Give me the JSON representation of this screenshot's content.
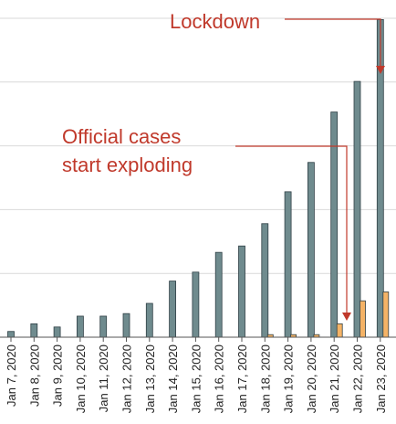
{
  "chart_data": {
    "type": "bar",
    "title": "",
    "xlabel": "",
    "ylabel": "",
    "ylim": [
      0,
      5
    ],
    "grid": true,
    "categories": [
      "Jan 7, 2020",
      "Jan 8, 2020",
      "Jan 9, 2020",
      "Jan 10, 2020",
      "Jan 11, 2020",
      "Jan 12, 2020",
      "Jan 13, 2020",
      "Jan 14, 2020",
      "Jan 15, 2020",
      "Jan 16, 2020",
      "Jan 17, 2020",
      "Jan 18, 2020",
      "Jan 19, 2020",
      "Jan 20, 2020",
      "Jan 21, 2020",
      "Jan 22, 2020",
      "Jan 23, 2020"
    ],
    "series": [
      {
        "color": "#6f8b8e",
        "values": [
          0.09,
          0.21,
          0.16,
          0.33,
          0.33,
          0.37,
          0.53,
          0.88,
          1.02,
          1.33,
          1.43,
          1.78,
          2.28,
          2.74,
          3.53,
          4.01,
          4.98
        ]
      },
      {
        "color": "#f5b366",
        "values": [
          0,
          0,
          0,
          0,
          0,
          0,
          0,
          0,
          0,
          0,
          0,
          0.04,
          0.04,
          0.04,
          0.21,
          0.57,
          0.71
        ]
      }
    ],
    "annotations": [
      {
        "text": "Lockdown",
        "target": "Jan 23, 2020"
      },
      {
        "text": "Official cases",
        "text2": "start exploding",
        "target": "Jan 21, 2020"
      }
    ],
    "colors": {
      "annotation": "#c0392b",
      "grid": "#d9d9d9",
      "axis": "#555555"
    }
  }
}
